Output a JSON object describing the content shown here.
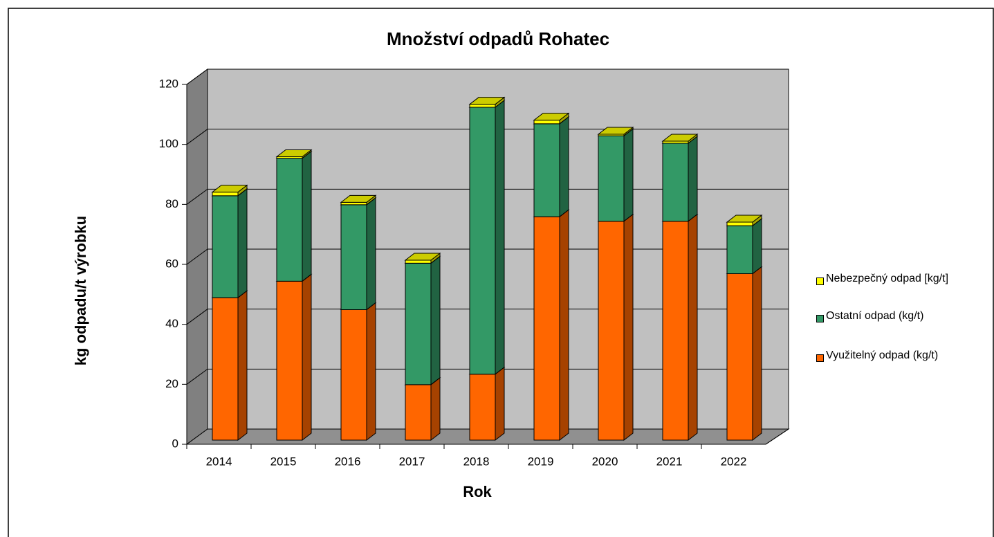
{
  "chart_data": {
    "type": "bar3d_stacked",
    "title": "Množství odpadů Rohatec",
    "x_label": "Rok",
    "y_label": "kg odpadu/t výrobku",
    "categories": [
      "2014",
      "2015",
      "2016",
      "2017",
      "2018",
      "2019",
      "2020",
      "2021",
      "2022"
    ],
    "series": [
      {
        "name": "Využitelný odpad (kg/t)",
        "color": "#ff6600",
        "values": [
          47.5,
          53,
          43.5,
          18.5,
          22,
          74.5,
          73,
          73,
          55.5
        ]
      },
      {
        "name": "Ostatní odpad (kg/t)",
        "color": "#339966",
        "values": [
          34,
          41,
          35,
          40.5,
          89,
          31,
          28.5,
          26,
          16
        ]
      },
      {
        "name": "Nebezpečný odpad [kg/t]",
        "color": "#ffff00",
        "values": [
          1.2,
          0.5,
          0.8,
          1,
          1,
          1.2,
          0.5,
          0.7,
          1.2
        ]
      }
    ],
    "ylim": [
      0,
      120
    ],
    "yticks": [
      0,
      20,
      40,
      60,
      80,
      100,
      120
    ],
    "grid": true,
    "legend": "right"
  }
}
